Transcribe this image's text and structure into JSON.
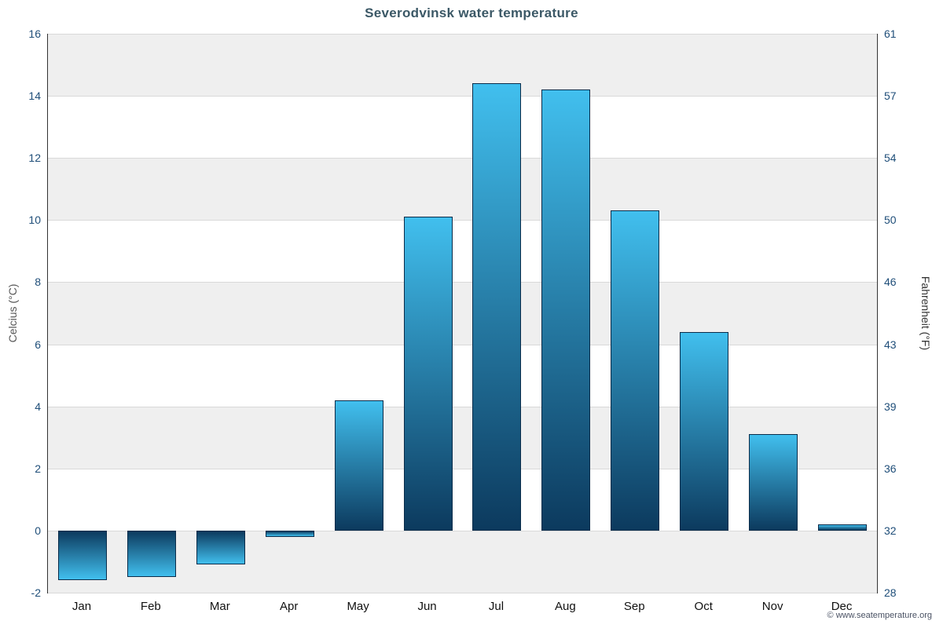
{
  "title": "Severodvinsk water temperature",
  "axes": {
    "left_label": "Celcius (°C)",
    "right_label": "Fahrenheit (°F)"
  },
  "footer": {
    "copyright": "© www.seatemperature.org"
  },
  "chart_data": {
    "type": "bar",
    "title": "Severodvinsk water temperature",
    "categories": [
      "Jan",
      "Feb",
      "Mar",
      "Apr",
      "May",
      "Jun",
      "Jul",
      "Aug",
      "Sep",
      "Oct",
      "Nov",
      "Dec"
    ],
    "values": [
      -1.6,
      -1.5,
      -1.1,
      -0.2,
      4.2,
      10.1,
      14.4,
      14.2,
      10.3,
      6.4,
      3.1,
      0.2
    ],
    "xlabel": "",
    "ylabel": "Celcius (°C)",
    "ylabel_right": "Fahrenheit (°F)",
    "ylim": [
      -2,
      16
    ],
    "celsius_ticks": [
      -2,
      0,
      2,
      4,
      6,
      8,
      10,
      12,
      14,
      16
    ],
    "fahrenheit_ticks": [
      28,
      32,
      36,
      39,
      43,
      46,
      50,
      54,
      57,
      61
    ],
    "grid": true,
    "legend": false,
    "colors": {
      "bar_light": "#41bfee",
      "bar_dark": "#0c3a5e",
      "bar_border": "#0a2c4a",
      "band": "#efefef",
      "grid": "#d9d9d9",
      "axis": "#333333",
      "tick": "#1f4e79",
      "month": "#111111",
      "title": "#3b5866",
      "copyright": "#4a5264"
    }
  }
}
